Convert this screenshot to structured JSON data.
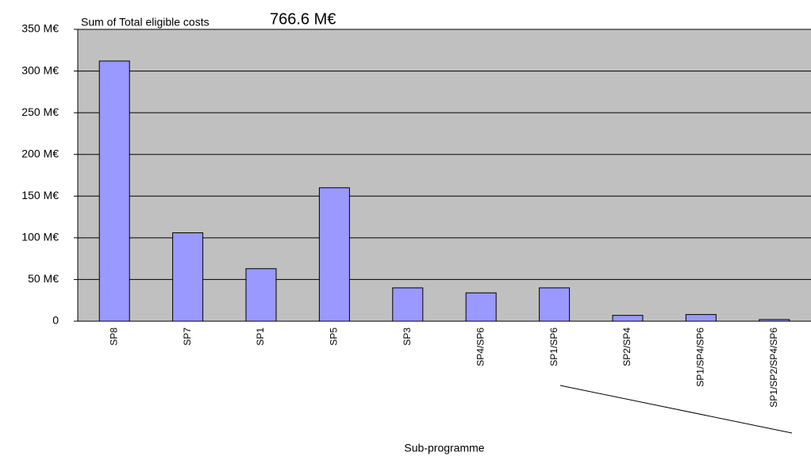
{
  "chart_data": {
    "type": "bar",
    "title": "Sum of Total eligible costs",
    "annotation": "766.6 M€",
    "x_label": "Sub-programme",
    "categories": [
      "SP8",
      "SP7",
      "SP1",
      "SP5",
      "SP3",
      "SP4/SP6",
      "SP1/SP6",
      "SP2/SP4",
      "SP1/SP4/SP6",
      "SP1/SP2/SP4/SP6"
    ],
    "values": [
      312,
      106,
      63,
      160,
      40,
      34,
      40,
      7,
      8,
      2
    ],
    "color": "#9999ff",
    "ylim": [
      0,
      350
    ],
    "yticks": [
      0,
      {
        "value": 50,
        "label": "50 M€"
      },
      {
        "value": 100,
        "label": "100 M€"
      },
      {
        "value": 150,
        "label": "150 M€"
      },
      {
        "value": 200,
        "label": "200 M€"
      },
      {
        "value": 250,
        "label": "250 M€"
      },
      {
        "value": 300,
        "label": "300 M€"
      },
      {
        "value": 350,
        "label": "350 M€"
      }
    ],
    "grid": true
  }
}
